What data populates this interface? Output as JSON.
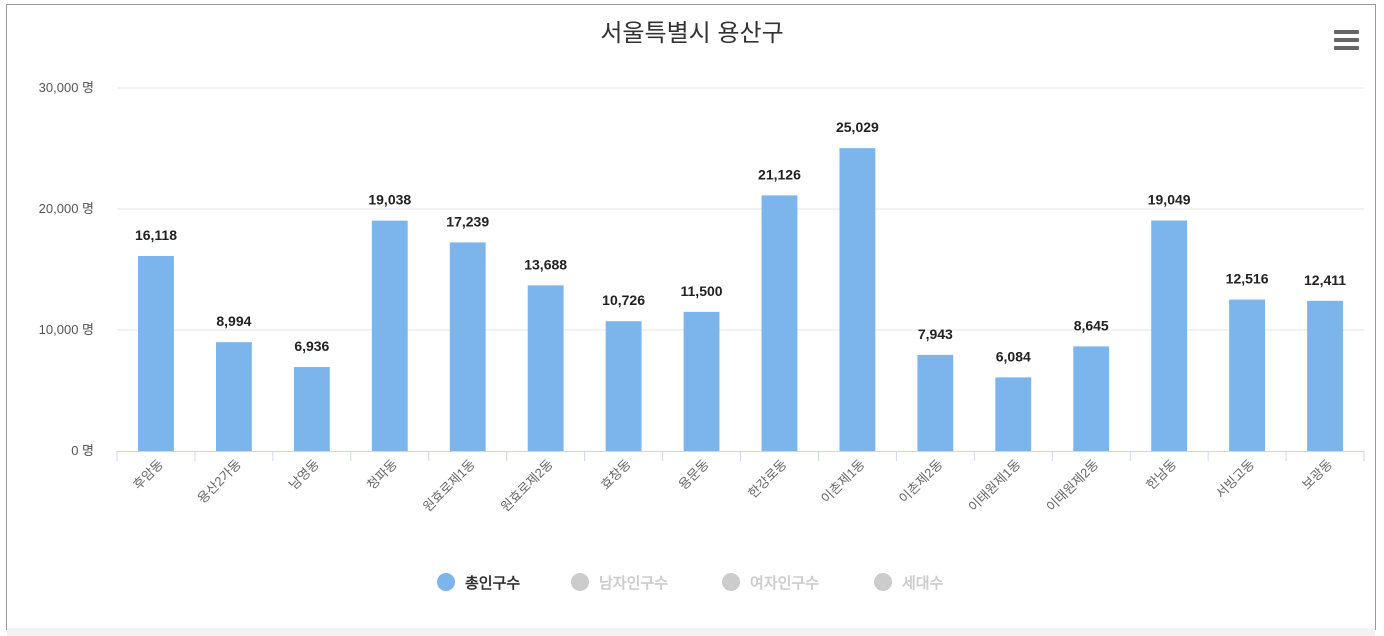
{
  "chart_data": {
    "type": "bar",
    "title": "서울특별시 용산구",
    "categories": [
      "후암동",
      "용산2가동",
      "남영동",
      "청파동",
      "원효로제1동",
      "원효로제2동",
      "효창동",
      "용문동",
      "한강로동",
      "이촌제1동",
      "이촌제2동",
      "이태원제1동",
      "이태원제2동",
      "한남동",
      "서빙고동",
      "보광동"
    ],
    "series": [
      {
        "name": "총인구수",
        "values": [
          16118,
          8994,
          6936,
          19038,
          17239,
          13688,
          10726,
          11500,
          21126,
          25029,
          7943,
          6084,
          8645,
          19049,
          12516,
          12411
        ],
        "value_labels": [
          "16,118",
          "8,994",
          "6,936",
          "19,038",
          "17,239",
          "13,688",
          "10,726",
          "11,500",
          "21,126",
          "25,029",
          "7,943",
          "6,084",
          "8,645",
          "19,049",
          "12,516",
          "12,411"
        ]
      }
    ],
    "ylim": [
      0,
      30000
    ],
    "yticks": [
      0,
      10000,
      20000,
      30000
    ],
    "ytick_labels": [
      "0 명",
      "10,000 명",
      "20,000 명",
      "30,000 명"
    ],
    "xlabel": "",
    "ylabel": "",
    "grid": true,
    "legend_position": "bottom-center",
    "legend": [
      {
        "name": "총인구수",
        "active": true
      },
      {
        "name": "남자인구수",
        "active": false
      },
      {
        "name": "여자인구수",
        "active": false
      },
      {
        "name": "세대수",
        "active": false
      }
    ]
  },
  "colors": {
    "bar": "#7cb5ec",
    "grid": "#e6e6e6",
    "axis": "#ccd6eb",
    "legend_active_text": "#333333",
    "legend_inactive": "#cccccc",
    "menu_icon": "#666666"
  },
  "menu": {
    "icon": "hamburger-menu-icon"
  }
}
